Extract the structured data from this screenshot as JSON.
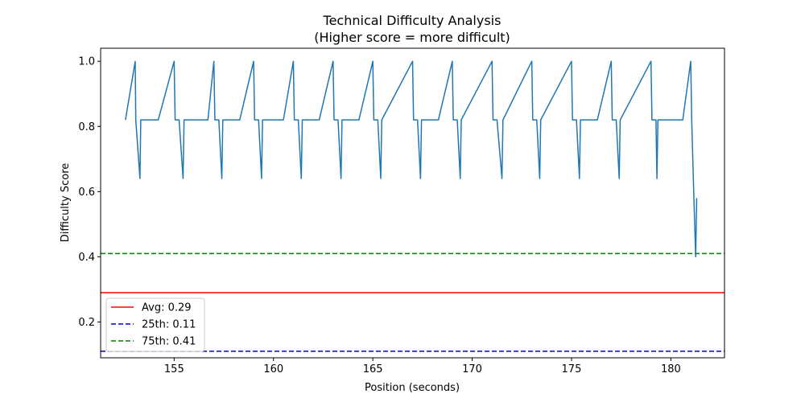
{
  "chart_data": {
    "type": "line",
    "title": "Technical Difficulty Analysis",
    "subtitle": "(Higher score = more difficult)",
    "xlabel": "Position (seconds)",
    "ylabel": "Difficulty Score",
    "xlim": [
      151.3,
      182.7
    ],
    "ylim": [
      0.09,
      1.04
    ],
    "xticks": [
      155,
      160,
      165,
      170,
      175,
      180
    ],
    "yticks": [
      0.2,
      0.4,
      0.6,
      0.8,
      1.0
    ],
    "xtick_labels": [
      "155",
      "160",
      "165",
      "170",
      "175",
      "180"
    ],
    "ytick_labels": [
      "0.2",
      "0.4",
      "0.6",
      "0.8",
      "1.0"
    ],
    "grid": false,
    "legend_position": "lower-left",
    "series": [
      {
        "color": "#1f77b4",
        "x": [
          152.55,
          153.04,
          153.07,
          153.28,
          153.32,
          154.2,
          155.0,
          155.05,
          155.25,
          155.45,
          155.5,
          156.7,
          157.0,
          157.05,
          157.25,
          157.4,
          157.45,
          158.3,
          159.0,
          159.05,
          159.25,
          159.4,
          159.45,
          160.5,
          161.0,
          161.05,
          161.25,
          161.4,
          161.45,
          162.3,
          163.0,
          163.05,
          163.25,
          163.4,
          163.45,
          164.3,
          165.0,
          165.05,
          165.25,
          165.4,
          165.45,
          167.0,
          167.05,
          167.25,
          167.4,
          167.45,
          168.3,
          169.0,
          169.05,
          169.25,
          169.4,
          169.45,
          171.0,
          171.05,
          171.25,
          171.5,
          171.55,
          173.0,
          173.05,
          173.25,
          173.4,
          173.45,
          175.0,
          175.05,
          175.25,
          175.4,
          175.45,
          176.3,
          177.0,
          177.05,
          177.25,
          177.4,
          177.45,
          179.0,
          179.05,
          179.25,
          179.3,
          179.35,
          180.6,
          181.0,
          181.05,
          181.15,
          181.25,
          181.3
        ],
        "y": [
          0.82,
          1.0,
          0.82,
          0.64,
          0.82,
          0.82,
          1.0,
          0.82,
          0.82,
          0.64,
          0.82,
          0.82,
          1.0,
          0.82,
          0.82,
          0.64,
          0.82,
          0.82,
          1.0,
          0.82,
          0.82,
          0.64,
          0.82,
          0.82,
          1.0,
          0.82,
          0.82,
          0.64,
          0.82,
          0.82,
          1.0,
          0.82,
          0.82,
          0.64,
          0.82,
          0.82,
          1.0,
          0.82,
          0.82,
          0.64,
          0.82,
          1.0,
          0.82,
          0.82,
          0.64,
          0.82,
          0.82,
          1.0,
          0.82,
          0.82,
          0.64,
          0.82,
          1.0,
          0.82,
          0.82,
          0.64,
          0.82,
          1.0,
          0.82,
          0.82,
          0.64,
          0.82,
          1.0,
          0.82,
          0.82,
          0.64,
          0.82,
          0.82,
          1.0,
          0.82,
          0.82,
          0.64,
          0.82,
          1.0,
          0.82,
          0.82,
          0.64,
          0.82,
          0.82,
          1.0,
          0.82,
          0.6,
          0.4,
          0.58
        ]
      }
    ],
    "reference_lines": [
      {
        "label": "Avg: 0.29",
        "value": 0.29,
        "color": "#ff0000",
        "style": "solid"
      },
      {
        "label": "25th: 0.11",
        "value": 0.11,
        "color": "#0000cc",
        "style": "dashed"
      },
      {
        "label": "75th: 0.41",
        "value": 0.41,
        "color": "#008000",
        "style": "dashed"
      }
    ]
  }
}
